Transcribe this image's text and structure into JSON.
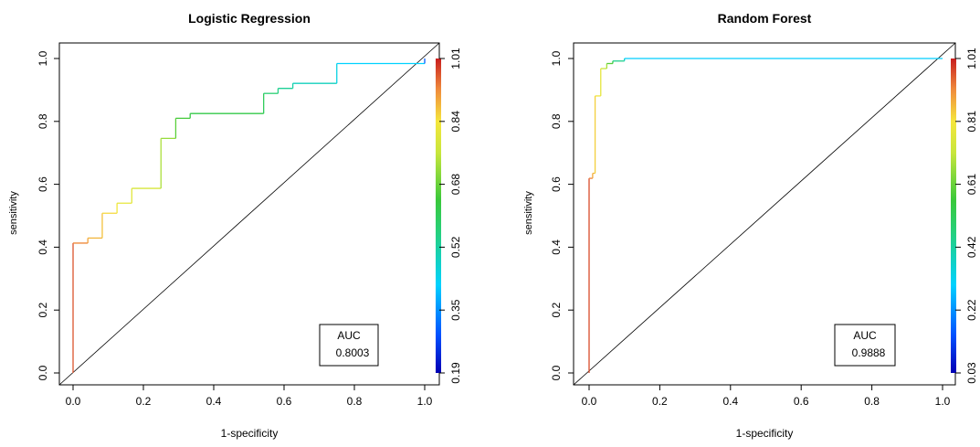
{
  "chart_data": [
    {
      "type": "line",
      "title": "Logistic Regression",
      "xlabel": "1-specificity",
      "ylabel": "sensitivity",
      "xlim": [
        0,
        1
      ],
      "ylim": [
        0,
        1
      ],
      "x_ticks": [
        "0.0",
        "0.2",
        "0.4",
        "0.6",
        "0.8",
        "1.0"
      ],
      "y_ticks": [
        "0.0",
        "0.2",
        "0.4",
        "0.6",
        "0.8",
        "1.0"
      ],
      "colorbar": {
        "ticks": [
          "0.19",
          "0.35",
          "0.52",
          "0.68",
          "0.84",
          "1.01"
        ],
        "min": 0.19,
        "max": 1.01
      },
      "auc_label": "AUC",
      "auc_value": "0.8003",
      "diagonal": true,
      "roc": {
        "x": [
          0,
          0,
          0.042,
          0.042,
          0.083,
          0.083,
          0.125,
          0.125,
          0.167,
          0.167,
          0.25,
          0.25,
          0.292,
          0.292,
          0.333,
          0.333,
          0.542,
          0.542,
          0.583,
          0.583,
          0.625,
          0.625,
          0.75,
          0.75,
          1.0,
          1.0
        ],
        "y": [
          0,
          0.413,
          0.413,
          0.429,
          0.429,
          0.508,
          0.508,
          0.54,
          0.54,
          0.587,
          0.587,
          0.746,
          0.746,
          0.81,
          0.81,
          0.825,
          0.825,
          0.889,
          0.889,
          0.905,
          0.905,
          0.921,
          0.921,
          0.984,
          0.984,
          1.0
        ],
        "threshold": [
          0.97,
          0.93,
          0.91,
          0.89,
          0.88,
          0.86,
          0.84,
          0.82,
          0.81,
          0.79,
          0.74,
          0.72,
          0.67,
          0.65,
          0.63,
          0.62,
          0.6,
          0.57,
          0.55,
          0.53,
          0.51,
          0.49,
          0.45,
          0.42,
          0.3,
          0.25
        ]
      }
    },
    {
      "type": "line",
      "title": "Random Forest",
      "xlabel": "1-specificity",
      "ylabel": "sensitivity",
      "xlim": [
        0,
        1
      ],
      "ylim": [
        0,
        1
      ],
      "x_ticks": [
        "0.0",
        "0.2",
        "0.4",
        "0.6",
        "0.8",
        "1.0"
      ],
      "y_ticks": [
        "0.0",
        "0.2",
        "0.4",
        "0.6",
        "0.8",
        "1.0"
      ],
      "colorbar": {
        "ticks": [
          "0.03",
          "0.22",
          "0.42",
          "0.61",
          "0.81",
          "1.01"
        ],
        "min": 0.03,
        "max": 1.01
      },
      "auc_label": "AUC",
      "auc_value": "0.9888",
      "diagonal": true,
      "roc": {
        "x": [
          0,
          0,
          0.01,
          0.01,
          0.017,
          0.017,
          0.033,
          0.033,
          0.05,
          0.05,
          0.067,
          0.067,
          0.1,
          0.1,
          1.0
        ],
        "y": [
          0,
          0.619,
          0.619,
          0.635,
          0.635,
          0.881,
          0.881,
          0.968,
          0.968,
          0.984,
          0.984,
          0.992,
          0.992,
          1.0,
          1.0
        ],
        "threshold": [
          0.97,
          0.92,
          0.88,
          0.86,
          0.84,
          0.8,
          0.78,
          0.72,
          0.68,
          0.6,
          0.55,
          0.45,
          0.38,
          0.3,
          0.1
        ]
      }
    }
  ]
}
